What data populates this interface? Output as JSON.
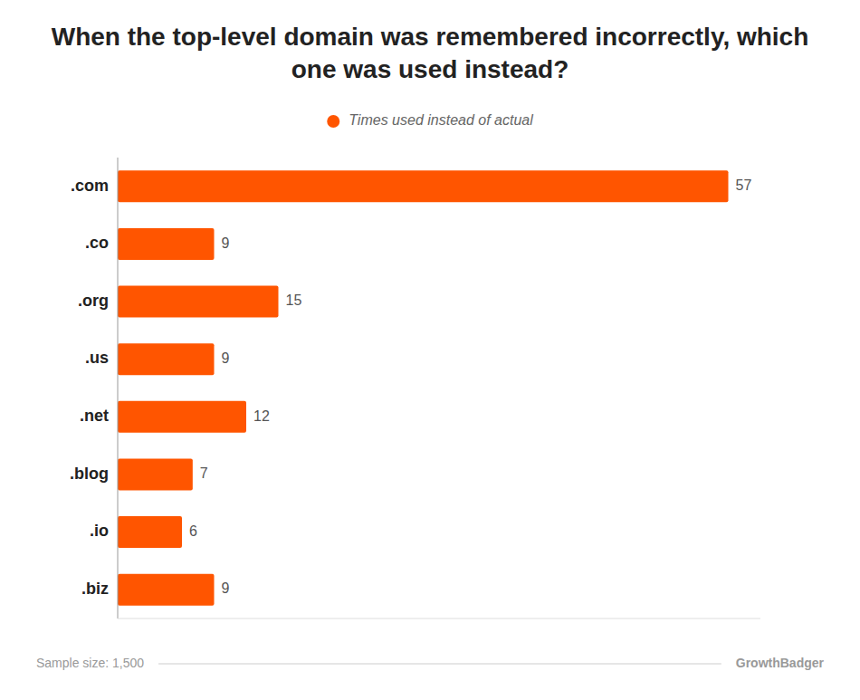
{
  "chart_data": {
    "type": "bar",
    "orientation": "horizontal",
    "title": "When the top-level domain was remembered incorrectly, which one was used instead?",
    "categories": [
      ".com",
      ".co",
      ".org",
      ".us",
      ".net",
      ".blog",
      ".io",
      ".biz"
    ],
    "series": [
      {
        "name": "Times used instead of actual",
        "color": "#FF5500",
        "values": [
          57,
          9,
          15,
          9,
          12,
          7,
          6,
          9
        ]
      }
    ],
    "xlim": [
      0,
      60
    ],
    "tick_labels": false,
    "grid": false,
    "data_labels": true,
    "legend": "top",
    "annotations": [
      "Sample size: 1,500",
      "GrowthBadger"
    ]
  }
}
